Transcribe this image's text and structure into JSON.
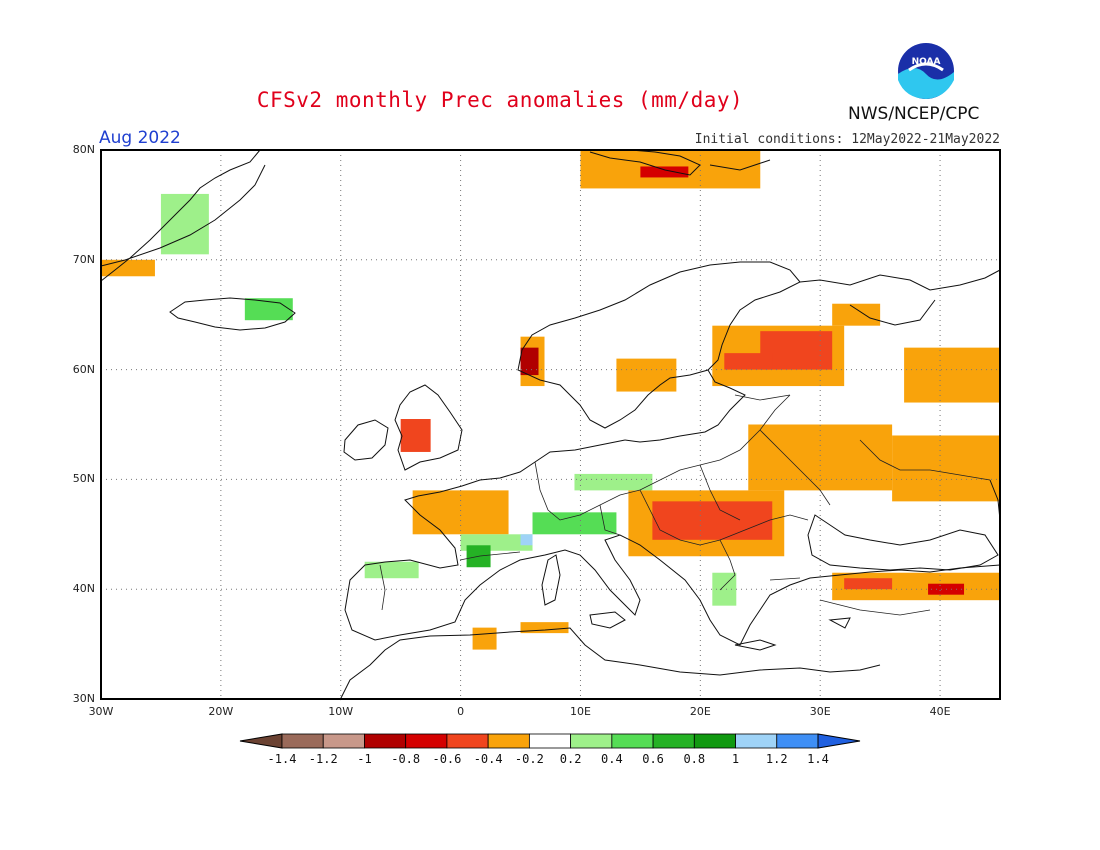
{
  "header": {
    "title": "CFSv2 monthly Prec anomalies (mm/day)",
    "period": "Aug 2022",
    "initial_conditions": "Initial conditions: 12May2022-21May2022",
    "agency": "NWS/NCEP/CPC",
    "logo_text": "NOAA"
  },
  "map": {
    "lon_range": [
      -30,
      45
    ],
    "lat_range": [
      30,
      80
    ],
    "lat_ticks": [
      {
        "value": 80,
        "label": "80N"
      },
      {
        "value": 70,
        "label": "70N"
      },
      {
        "value": 60,
        "label": "60N"
      },
      {
        "value": 50,
        "label": "50N"
      },
      {
        "value": 40,
        "label": "40N"
      },
      {
        "value": 30,
        "label": "30N"
      }
    ],
    "lon_ticks": [
      {
        "value": -30,
        "label": "30W"
      },
      {
        "value": -20,
        "label": "20W"
      },
      {
        "value": -10,
        "label": "10W"
      },
      {
        "value": 0,
        "label": "0"
      },
      {
        "value": 10,
        "label": "10E"
      },
      {
        "value": 20,
        "label": "20E"
      },
      {
        "value": 30,
        "label": "30E"
      },
      {
        "value": 40,
        "label": "40E"
      }
    ],
    "grid": true,
    "anomaly_regions": [
      {
        "name": "greenland-east",
        "level": 0.3,
        "lon": [
          -25,
          -21
        ],
        "lat": [
          70.5,
          76
        ]
      },
      {
        "name": "greenland-southeast",
        "level": -0.3,
        "lon": [
          -30,
          -25.5
        ],
        "lat": [
          68.5,
          70
        ]
      },
      {
        "name": "iceland-east",
        "level": 0.5,
        "lon": [
          -18,
          -14
        ],
        "lat": [
          64.5,
          66.5
        ]
      },
      {
        "name": "svalbard",
        "level": -0.3,
        "lon": [
          10,
          25
        ],
        "lat": [
          76.5,
          80
        ]
      },
      {
        "name": "svalbard-core",
        "level": -0.7,
        "lon": [
          15,
          19
        ],
        "lat": [
          77.5,
          78.5
        ]
      },
      {
        "name": "norway-west",
        "level": -0.3,
        "lon": [
          5,
          7
        ],
        "lat": [
          58.5,
          63
        ]
      },
      {
        "name": "norway-west-core",
        "level": -0.9,
        "lon": [
          5,
          6.5
        ],
        "lat": [
          59.5,
          62
        ]
      },
      {
        "name": "sweden-central",
        "level": -0.3,
        "lon": [
          13,
          18
        ],
        "lat": [
          58,
          61
        ]
      },
      {
        "name": "baltic-finland",
        "level": -0.3,
        "lon": [
          21,
          32
        ],
        "lat": [
          58.5,
          64
        ]
      },
      {
        "name": "finland-core",
        "level": -0.5,
        "lon": [
          25,
          31
        ],
        "lat": [
          60,
          63.5
        ]
      },
      {
        "name": "russia-northwest",
        "level": -0.5,
        "lon": [
          22,
          26
        ],
        "lat": [
          60,
          61.5
        ]
      },
      {
        "name": "russia-north",
        "level": -0.3,
        "lon": [
          31,
          35
        ],
        "lat": [
          64,
          66
        ]
      },
      {
        "name": "russia-east",
        "level": -0.3,
        "lon": [
          37,
          45
        ],
        "lat": [
          57,
          62
        ]
      },
      {
        "name": "russia-southeast",
        "level": -0.3,
        "lon": [
          36,
          45
        ],
        "lat": [
          48,
          54
        ]
      },
      {
        "name": "belarus-ukraine",
        "level": -0.3,
        "lon": [
          24,
          36
        ],
        "lat": [
          49,
          55
        ]
      },
      {
        "name": "uk-north",
        "level": -0.5,
        "lon": [
          -5,
          -2.5
        ],
        "lat": [
          52.5,
          55.5
        ]
      },
      {
        "name": "france",
        "level": -0.3,
        "lon": [
          -4,
          4
        ],
        "lat": [
          45,
          49
        ]
      },
      {
        "name": "france-south-green",
        "level": 0.3,
        "lon": [
          0,
          6
        ],
        "lat": [
          43.5,
          45
        ]
      },
      {
        "name": "alps-green",
        "level": 0.5,
        "lon": [
          6,
          13
        ],
        "lat": [
          45,
          47
        ]
      },
      {
        "name": "alps-blue",
        "level": 1.1,
        "lon": [
          5,
          6
        ],
        "lat": [
          44,
          45
        ]
      },
      {
        "name": "pyrenees-green",
        "level": 0.7,
        "lon": [
          0.5,
          2.5
        ],
        "lat": [
          42,
          44
        ]
      },
      {
        "name": "germany-green",
        "level": 0.3,
        "lon": [
          9.5,
          16
        ],
        "lat": [
          49,
          50.5
        ]
      },
      {
        "name": "balkans-north",
        "level": -0.3,
        "lon": [
          14,
          27
        ],
        "lat": [
          43,
          49
        ]
      },
      {
        "name": "hungary-romania",
        "level": -0.5,
        "lon": [
          16,
          26
        ],
        "lat": [
          44.5,
          48
        ]
      },
      {
        "name": "spain-west-green",
        "level": 0.3,
        "lon": [
          -8,
          -3.5
        ],
        "lat": [
          41,
          42.5
        ]
      },
      {
        "name": "greece-green",
        "level": 0.3,
        "lon": [
          21,
          23
        ],
        "lat": [
          38.5,
          41.5
        ]
      },
      {
        "name": "turkey-north",
        "level": -0.3,
        "lon": [
          31,
          45
        ],
        "lat": [
          39,
          41.5
        ]
      },
      {
        "name": "turkey-northeast",
        "level": -0.7,
        "lon": [
          39,
          42
        ],
        "lat": [
          39.5,
          40.5
        ]
      },
      {
        "name": "turkey-central",
        "level": -0.5,
        "lon": [
          32,
          36
        ],
        "lat": [
          40,
          41
        ]
      },
      {
        "name": "north-africa-west",
        "level": -0.3,
        "lon": [
          1,
          3
        ],
        "lat": [
          34.5,
          36.5
        ]
      },
      {
        "name": "tunisia",
        "level": -0.3,
        "lon": [
          5,
          9
        ],
        "lat": [
          36,
          37
        ]
      }
    ]
  },
  "colorbar": {
    "labels": [
      "-1.4",
      "-1.2",
      "-1",
      "-0.8",
      "-0.6",
      "-0.4",
      "-0.2",
      "0.2",
      "0.4",
      "0.6",
      "0.8",
      "1",
      "1.2",
      "1.4"
    ],
    "colors": [
      "#6b4232",
      "#9a6a5a",
      "#c8988a",
      "#b00000",
      "#d40000",
      "#f0451e",
      "#f9a30b",
      "#ffffff",
      "#9ef08a",
      "#55dd55",
      "#25b225",
      "#119911",
      "#9fd3f7",
      "#3f8ff5",
      "#2060e0"
    ]
  }
}
